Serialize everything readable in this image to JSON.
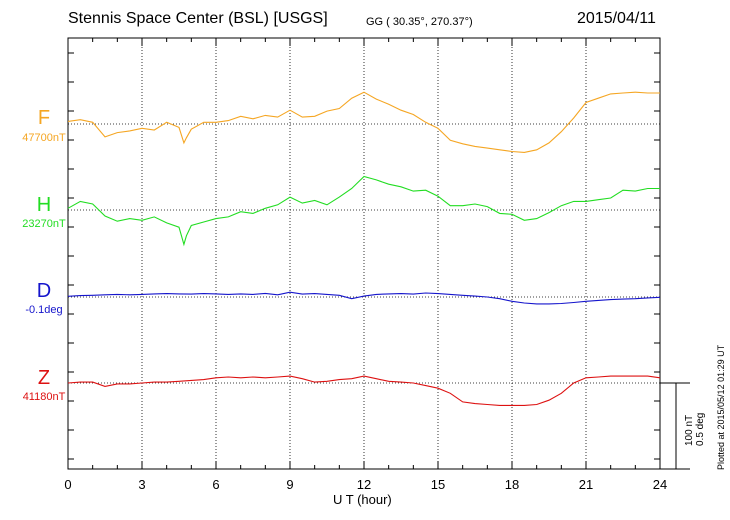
{
  "header": {
    "title": "Stennis Space Center (BSL)  [USGS]",
    "coords": "GG ( 30.35°, 270.37°)",
    "date": "2015/04/11"
  },
  "scale": {
    "nt": "100 nT",
    "deg": "0.5 deg",
    "plotted": "Plotted at 2015/05/12 01:29 UT"
  },
  "colors": {
    "F": "#f5a623",
    "H": "#22dd22",
    "D": "#1515cc",
    "Z": "#dd1111"
  },
  "chart_data": {
    "type": "line",
    "xlabel": "U T (hour)",
    "xlim": [
      0,
      24
    ],
    "xticks": [
      "0",
      "3",
      "6",
      "9",
      "12",
      "15",
      "18",
      "21",
      "24"
    ],
    "grid": true,
    "series": [
      {
        "name": "F",
        "baseline": "47700nT",
        "unit": "nT",
        "x": [
          0,
          0.5,
          1,
          1.5,
          2,
          2.5,
          3,
          3.5,
          4,
          4.5,
          4.7,
          4.8,
          5,
          5.5,
          6,
          6.5,
          7,
          7.5,
          8,
          8.5,
          9,
          9.5,
          10,
          10.5,
          11,
          11.5,
          12,
          12.5,
          13,
          13.5,
          14,
          14.5,
          15,
          15.5,
          16,
          16.5,
          17,
          17.5,
          18,
          18.5,
          19,
          19.5,
          20,
          20.5,
          21,
          21.5,
          22,
          22.5,
          23,
          23.5,
          24
        ],
        "y": [
          47703,
          47705,
          47702,
          47685,
          47690,
          47692,
          47695,
          47693,
          47702,
          47696,
          47678,
          47684,
          47694,
          47702,
          47702,
          47704,
          47709,
          47706,
          47710,
          47708,
          47716,
          47708,
          47709,
          47715,
          47718,
          47730,
          47737,
          47729,
          47723,
          47716,
          47711,
          47702,
          47695,
          47681,
          47677,
          47674,
          47672,
          47670,
          47668,
          47667,
          47670,
          47678,
          47691,
          47707,
          47725,
          47730,
          47735,
          47736,
          47737,
          47736,
          47736
        ]
      },
      {
        "name": "H",
        "baseline": "23270nT",
        "unit": "nT",
        "x": [
          0,
          0.5,
          1,
          1.5,
          2,
          2.5,
          3,
          3.5,
          4,
          4.5,
          4.7,
          4.8,
          5,
          5.5,
          6,
          6.5,
          7,
          7.5,
          8,
          8.5,
          9,
          9.5,
          10,
          10.5,
          11,
          11.5,
          12,
          12.5,
          13,
          13.5,
          14,
          14.5,
          15,
          15.5,
          16,
          16.5,
          17,
          17.5,
          18,
          18.5,
          19,
          19.5,
          20,
          20.5,
          21,
          21.5,
          22,
          22.5,
          23,
          23.5,
          24
        ],
        "y": [
          23272,
          23280,
          23277,
          23263,
          23257,
          23260,
          23258,
          23262,
          23255,
          23250,
          23230,
          23240,
          23252,
          23256,
          23260,
          23262,
          23268,
          23266,
          23272,
          23276,
          23285,
          23278,
          23281,
          23276,
          23285,
          23295,
          23309,
          23305,
          23300,
          23297,
          23292,
          23293,
          23286,
          23275,
          23275,
          23277,
          23274,
          23266,
          23265,
          23258,
          23260,
          23267,
          23275,
          23280,
          23280,
          23282,
          23284,
          23293,
          23292,
          23295,
          23295
        ]
      },
      {
        "name": "D",
        "baseline": "-0.1deg",
        "unit": "deg",
        "x": [
          0,
          0.5,
          1,
          1.5,
          2,
          2.5,
          3,
          3.5,
          4,
          4.5,
          5,
          5.5,
          6,
          6.5,
          7,
          7.5,
          8,
          8.5,
          9,
          9.5,
          10,
          10.5,
          11,
          11.5,
          12,
          12.5,
          13,
          13.5,
          14,
          14.5,
          15,
          15.5,
          16,
          16.5,
          17,
          17.5,
          18,
          18.5,
          19,
          19.5,
          20,
          20.5,
          21,
          21.5,
          22,
          22.5,
          23,
          23.5,
          24
        ],
        "y": [
          -0.096,
          -0.092,
          -0.09,
          -0.087,
          -0.085,
          -0.087,
          -0.085,
          -0.082,
          -0.08,
          -0.082,
          -0.083,
          -0.08,
          -0.082,
          -0.085,
          -0.082,
          -0.085,
          -0.079,
          -0.087,
          -0.072,
          -0.083,
          -0.08,
          -0.085,
          -0.09,
          -0.11,
          -0.095,
          -0.085,
          -0.082,
          -0.08,
          -0.083,
          -0.077,
          -0.08,
          -0.085,
          -0.09,
          -0.095,
          -0.1,
          -0.11,
          -0.125,
          -0.135,
          -0.14,
          -0.14,
          -0.138,
          -0.132,
          -0.125,
          -0.12,
          -0.115,
          -0.112,
          -0.11,
          -0.105,
          -0.102
        ]
      },
      {
        "name": "Z",
        "baseline": "41180nT",
        "unit": "nT",
        "x": [
          0,
          0.5,
          1,
          1.5,
          2,
          2.5,
          3,
          3.5,
          4,
          4.5,
          5,
          5.5,
          6,
          6.5,
          7,
          7.5,
          8,
          8.5,
          9,
          9.5,
          10,
          10.5,
          11,
          11.5,
          12,
          12.5,
          13,
          13.5,
          14,
          14.5,
          15,
          15.5,
          16,
          16.5,
          17,
          17.5,
          18,
          18.5,
          19,
          19.5,
          20,
          20.5,
          21,
          21.5,
          22,
          22.5,
          23,
          23.5,
          24
        ],
        "y": [
          41180,
          41181,
          41181,
          41176,
          41179,
          41179,
          41180,
          41181,
          41181,
          41182,
          41183,
          41184,
          41186,
          41187,
          41186,
          41187,
          41186,
          41187,
          41188,
          41185,
          41181,
          41182,
          41184,
          41185,
          41188,
          41185,
          41182,
          41181,
          41180,
          41177,
          41174,
          41168,
          41158,
          41156,
          41155,
          41154,
          41154,
          41154,
          41155,
          41160,
          41168,
          41180,
          41186,
          41187,
          41188,
          41188,
          41188,
          41188,
          41186
        ]
      }
    ]
  }
}
